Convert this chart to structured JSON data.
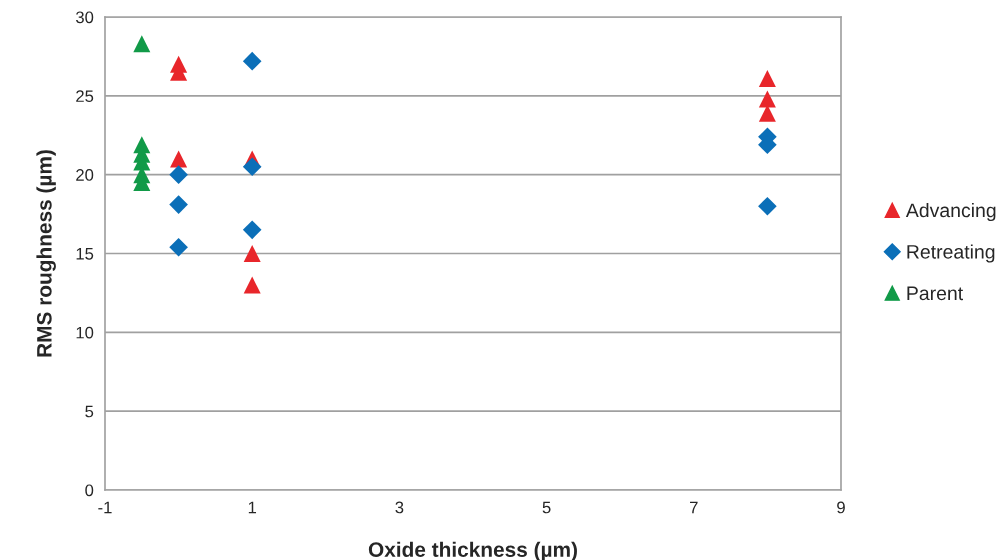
{
  "chart_data": {
    "type": "scatter",
    "xlabel": "Oxide thickness (µm)",
    "ylabel": "RMS roughness (µm)",
    "xlim": [
      -1,
      9
    ],
    "xticks": [
      -1,
      1,
      3,
      5,
      7,
      9
    ],
    "ylim": [
      0,
      30
    ],
    "yticks": [
      0,
      5,
      10,
      15,
      20,
      25,
      30
    ],
    "grid": "y",
    "legend": "right",
    "series": [
      {
        "name": "Advancing",
        "color": "#e8262b",
        "marker": "triangle",
        "x": [
          0,
          0,
          0,
          1,
          1,
          1,
          8,
          8,
          8
        ],
        "values": [
          27.0,
          26.5,
          21.0,
          21.0,
          15.0,
          13.0,
          26.1,
          24.8,
          23.9
        ]
      },
      {
        "name": "Retreating",
        "color": "#0b6fb8",
        "marker": "diamond",
        "x": [
          0,
          0,
          0,
          1,
          1,
          1,
          8,
          8,
          8
        ],
        "values": [
          20.0,
          18.1,
          15.4,
          27.2,
          20.5,
          16.5,
          22.4,
          21.9,
          18.0
        ]
      },
      {
        "name": "Parent",
        "color": "#119a48",
        "marker": "triangle",
        "x": [
          -0.5,
          -0.5,
          -0.5,
          -0.5,
          -0.5,
          -0.5
        ],
        "values": [
          28.3,
          21.9,
          21.3,
          20.8,
          20.0,
          19.5
        ]
      }
    ]
  }
}
